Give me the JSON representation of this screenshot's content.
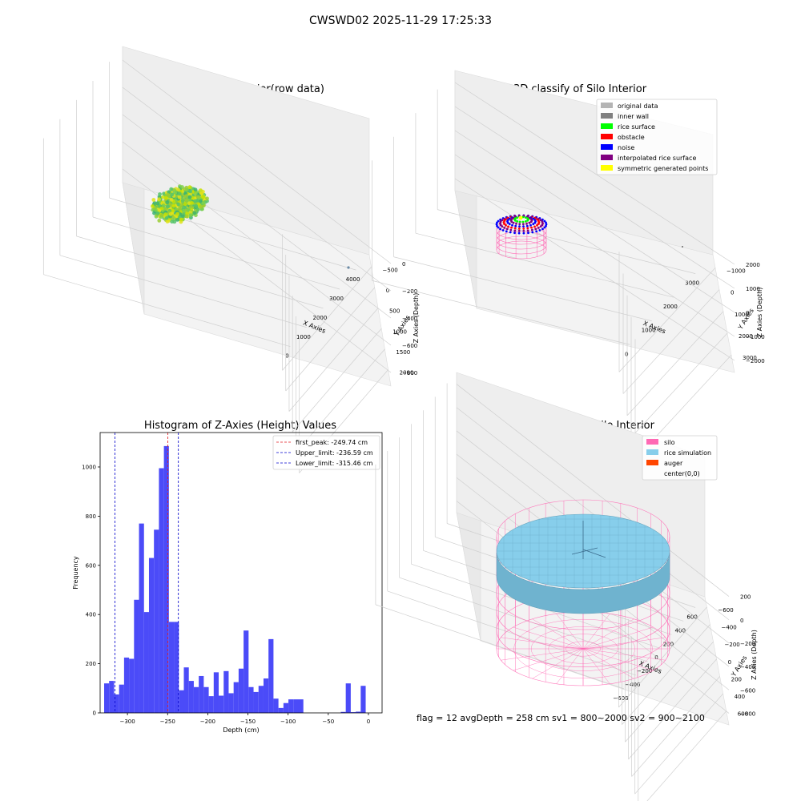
{
  "figure": {
    "suptitle": "CWSWD02 2025-11-29 17:25:33",
    "footer": "flag = 12  avgDepth = 258 cm  sv1 = 800~2000  sv2 = 900~2100"
  },
  "colors": {
    "hist_bar": "#4b4bf8",
    "first_peak_line": "#e41a1c",
    "limit_line": "#0000cc",
    "silo": "#ff69b4",
    "rice_sim": "#87ceeb",
    "auger": "#ff4500",
    "original": "#b4b4b4",
    "inner_wall": "#808080",
    "rice_surface": "#00ff00",
    "obstacle": "#ff0000",
    "noise": "#0000ff",
    "interpolated": "#800080",
    "symmetric": "#ffff00"
  },
  "chart_data": [
    {
      "type": "scatter3d",
      "title": "3D Plot of Silo Interior(row data)",
      "xlabel": "X Axies",
      "ylabel": "Y Axies",
      "zlabel": "Z Axies (Depth)",
      "x_ticks": [
        "0",
        "1000",
        "2000",
        "3000",
        "4000"
      ],
      "y_ticks": [
        "−500",
        "0",
        "500",
        "1000",
        "1500",
        "2000"
      ],
      "z_ticks": [
        "0",
        "−200",
        "−400",
        "−600",
        "−800"
      ]
    },
    {
      "type": "scatter3d",
      "title": "3D classify of Silo Interior",
      "xlabel": "X Axies",
      "ylabel": "Y Axies",
      "zlabel": "Z Axies (Depth)",
      "x_ticks": [
        "0",
        "1000",
        "2000",
        "3000"
      ],
      "y_ticks": [
        "−1000",
        "0",
        "1000",
        "2000",
        "3000"
      ],
      "z_ticks": [
        "2000",
        "1000",
        "0",
        "−1000",
        "−2000"
      ],
      "legend_position": "top-right",
      "legend": [
        {
          "label": "original data",
          "color": "#b4b4b4"
        },
        {
          "label": "inner wall",
          "color": "#808080"
        },
        {
          "label": "rice surface",
          "color": "#00ff00"
        },
        {
          "label": "obstacle",
          "color": "#ff0000"
        },
        {
          "label": "noise",
          "color": "#0000ff"
        },
        {
          "label": "interpolated rice surface",
          "color": "#800080"
        },
        {
          "label": "symmetric generated points",
          "color": "#ffff00"
        }
      ]
    },
    {
      "type": "bar",
      "title": "Histogram of Z-Axies (Height) Values",
      "xlabel": "Depth (cm)",
      "ylabel": "Frequency",
      "xlim": [
        -334,
        17
      ],
      "ylim": [
        0,
        1140
      ],
      "bin_width": 6.2,
      "x_ticks": [
        -300,
        -250,
        -200,
        -150,
        -100,
        -50,
        0
      ],
      "x_tick_labels": [
        "−300",
        "−250",
        "−200",
        "−150",
        "−100",
        "−50",
        "0"
      ],
      "y_ticks": [
        0,
        200,
        400,
        600,
        800,
        1000
      ],
      "y_tick_labels": [
        "0",
        "200",
        "400",
        "600",
        "800",
        "1000"
      ],
      "bins": [
        {
          "start": -329.0,
          "count": 120
        },
        {
          "start": -322.8,
          "count": 130
        },
        {
          "start": -316.6,
          "count": 75
        },
        {
          "start": -310.4,
          "count": 115
        },
        {
          "start": -304.2,
          "count": 225
        },
        {
          "start": -298.0,
          "count": 220
        },
        {
          "start": -291.8,
          "count": 460
        },
        {
          "start": -285.6,
          "count": 770
        },
        {
          "start": -279.4,
          "count": 410
        },
        {
          "start": -273.2,
          "count": 630
        },
        {
          "start": -267.0,
          "count": 745
        },
        {
          "start": -260.8,
          "count": 995
        },
        {
          "start": -254.6,
          "count": 1085
        },
        {
          "start": -248.4,
          "count": 370
        },
        {
          "start": -242.2,
          "count": 370
        },
        {
          "start": -236.0,
          "count": 92
        },
        {
          "start": -229.8,
          "count": 185
        },
        {
          "start": -223.6,
          "count": 130
        },
        {
          "start": -217.4,
          "count": 105
        },
        {
          "start": -211.2,
          "count": 150
        },
        {
          "start": -205.0,
          "count": 105
        },
        {
          "start": -198.8,
          "count": 68
        },
        {
          "start": -192.6,
          "count": 165
        },
        {
          "start": -186.4,
          "count": 70
        },
        {
          "start": -180.2,
          "count": 170
        },
        {
          "start": -174.0,
          "count": 80
        },
        {
          "start": -167.8,
          "count": 125
        },
        {
          "start": -161.6,
          "count": 180
        },
        {
          "start": -155.4,
          "count": 335
        },
        {
          "start": -149.2,
          "count": 105
        },
        {
          "start": -143.0,
          "count": 85
        },
        {
          "start": -136.8,
          "count": 110
        },
        {
          "start": -130.6,
          "count": 140
        },
        {
          "start": -124.4,
          "count": 300
        },
        {
          "start": -118.2,
          "count": 58
        },
        {
          "start": -112.0,
          "count": 20
        },
        {
          "start": -105.8,
          "count": 40
        },
        {
          "start": -99.6,
          "count": 55
        },
        {
          "start": -93.4,
          "count": 55
        },
        {
          "start": -87.2,
          "count": 55
        },
        {
          "start": -34.4,
          "count": 4
        },
        {
          "start": -28.2,
          "count": 120
        },
        {
          "start": -22.0,
          "count": 3
        },
        {
          "start": -15.8,
          "count": 5
        },
        {
          "start": -9.6,
          "count": 110
        }
      ],
      "vlines": [
        {
          "label": "first_peak: -249.74 cm",
          "x": -249.74,
          "color": "#e41a1c"
        },
        {
          "label": "Upper_limit: -236.59 cm",
          "x": -236.59,
          "color": "#0000cc"
        },
        {
          "label": "Lower_limit: -315.46 cm",
          "x": -315.46,
          "color": "#0000cc"
        }
      ],
      "legend_position": "top-right"
    },
    {
      "type": "surface3d",
      "title": "3D simulation of Silo Interior",
      "xlabel": "X Axies",
      "ylabel": "Y Axies",
      "zlabel": "Z Axies (Depth)",
      "x_ticks": [
        "−600",
        "−400",
        "−200",
        "0",
        "200",
        "400",
        "600"
      ],
      "y_ticks": [
        "−600",
        "−400",
        "−200",
        "0",
        "200",
        "400",
        "600"
      ],
      "z_ticks": [
        "200",
        "0",
        "−200",
        "−400",
        "−600",
        "−800"
      ],
      "legend_position": "top-right",
      "legend": [
        {
          "label": "silo",
          "color": "#ff69b4"
        },
        {
          "label": "rice simulation",
          "color": "#87ceeb"
        },
        {
          "label": "auger",
          "color": "#ff4500"
        },
        {
          "label": "center(0,0)",
          "color": ""
        }
      ]
    }
  ]
}
